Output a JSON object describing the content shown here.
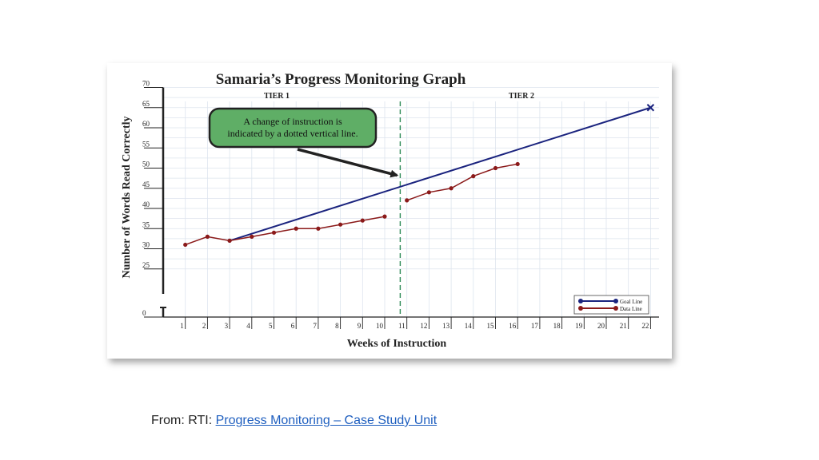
{
  "chart_data": {
    "type": "line",
    "title": "Samaria’s Progress Monitoring Graph",
    "xlabel": "Weeks of Instruction",
    "ylabel": "Number of Words Read Correctly",
    "x_ticks": [
      1,
      2,
      3,
      4,
      5,
      6,
      7,
      8,
      9,
      10,
      11,
      12,
      13,
      14,
      15,
      16,
      17,
      18,
      19,
      20,
      21,
      22
    ],
    "y_ticks": [
      0,
      25,
      30,
      35,
      40,
      45,
      50,
      55,
      60,
      65,
      70
    ],
    "xlim": [
      0,
      22.5
    ],
    "ylim": [
      20,
      70
    ],
    "axis_break": true,
    "grid": true,
    "phase_labels": [
      {
        "label": "TIER 1"
      },
      {
        "label": "TIER 2"
      }
    ],
    "phase_change_x": 10.7,
    "annotation": {
      "line1": "A change of instruction is",
      "line2": "indicated by a dotted vertical line.",
      "bg_color": "#5fae66",
      "arrow_target": {
        "x": 10.7,
        "y": 49
      }
    },
    "series": [
      {
        "name": "Goal Line",
        "color": "#1a237e",
        "marker": "x-end",
        "points": [
          [
            3,
            32
          ],
          [
            22,
            65
          ]
        ]
      },
      {
        "name": "Data Line",
        "color": "#8b1a1a",
        "segments": [
          [
            [
              1,
              31
            ],
            [
              2,
              33
            ],
            [
              3,
              32
            ],
            [
              4,
              33
            ],
            [
              5,
              34
            ],
            [
              6,
              35
            ],
            [
              7,
              35
            ],
            [
              8,
              36
            ],
            [
              9,
              37
            ],
            [
              10,
              38
            ]
          ],
          [
            [
              11,
              42
            ],
            [
              12,
              44
            ],
            [
              13,
              45
            ],
            [
              14,
              48
            ],
            [
              15,
              50
            ],
            [
              16,
              51
            ]
          ]
        ]
      }
    ],
    "legend_position": "bottom-right"
  },
  "caption": {
    "prefix": "From: RTI: ",
    "link_text": "Progress Monitoring – Case Study Unit"
  }
}
